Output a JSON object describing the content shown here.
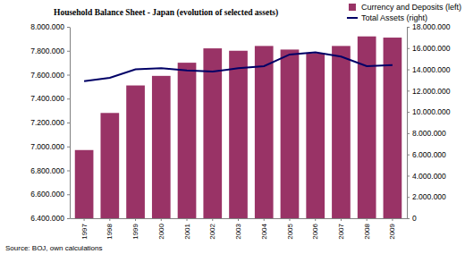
{
  "chart_data": {
    "type": "bar",
    "title": "Household Balance Sheet - Japan (evolution of selected assets)",
    "annotations": [
      "Source: BOJ, own calculations"
    ],
    "categories": [
      "1997",
      "1998",
      "1999",
      "2000",
      "2001",
      "2002",
      "2003",
      "2004",
      "2005",
      "2006",
      "2007",
      "2008",
      "2009"
    ],
    "series": [
      {
        "name": "Currency and Deposits (left)",
        "type": "bar",
        "color": "#993366",
        "values": [
          6970000,
          7280000,
          7510000,
          7590000,
          7700000,
          7820000,
          7800000,
          7840000,
          7810000,
          7780000,
          7840000,
          7920000,
          7910000
        ]
      },
      {
        "name": "Total Assets (right)",
        "type": "line",
        "axis": "y2",
        "color": "#000066",
        "values": [
          12900000,
          13200000,
          14000000,
          14100000,
          13900000,
          13800000,
          14100000,
          14300000,
          15400000,
          15600000,
          15200000,
          14300000,
          14400000
        ]
      }
    ],
    "ylim": [
      6400000,
      8000000
    ],
    "yticks": [
      {
        "value": 6400000,
        "label": "6.400.000"
      },
      {
        "value": 6600000,
        "label": "6.600.000"
      },
      {
        "value": 6800000,
        "label": "6.800.000"
      },
      {
        "value": 7000000,
        "label": "7.000.000"
      },
      {
        "value": 7200000,
        "label": "7.200.000"
      },
      {
        "value": 7400000,
        "label": "7.400.000"
      },
      {
        "value": 7600000,
        "label": "7.600.000"
      },
      {
        "value": 7800000,
        "label": "7.800.000"
      },
      {
        "value": 8000000,
        "label": "8.000.000"
      }
    ],
    "y2lim": [
      0,
      18000000
    ],
    "y2ticks": [
      0,
      {
        "value": 2000000,
        "label": "2.000.000"
      },
      {
        "value": 4000000,
        "label": "4.000.000"
      },
      {
        "value": 6000000,
        "label": "6.000.000"
      },
      {
        "value": 8000000,
        "label": "8.000.000"
      },
      {
        "value": 10000000,
        "label": "10.000.000"
      },
      {
        "value": 12000000,
        "label": "12.000.000"
      },
      {
        "value": 14000000,
        "label": "14.000.000"
      },
      {
        "value": 16000000,
        "label": "16.000.000"
      },
      {
        "value": 18000000,
        "label": "18.000.000"
      }
    ],
    "grid": false,
    "legend": "top-right"
  }
}
